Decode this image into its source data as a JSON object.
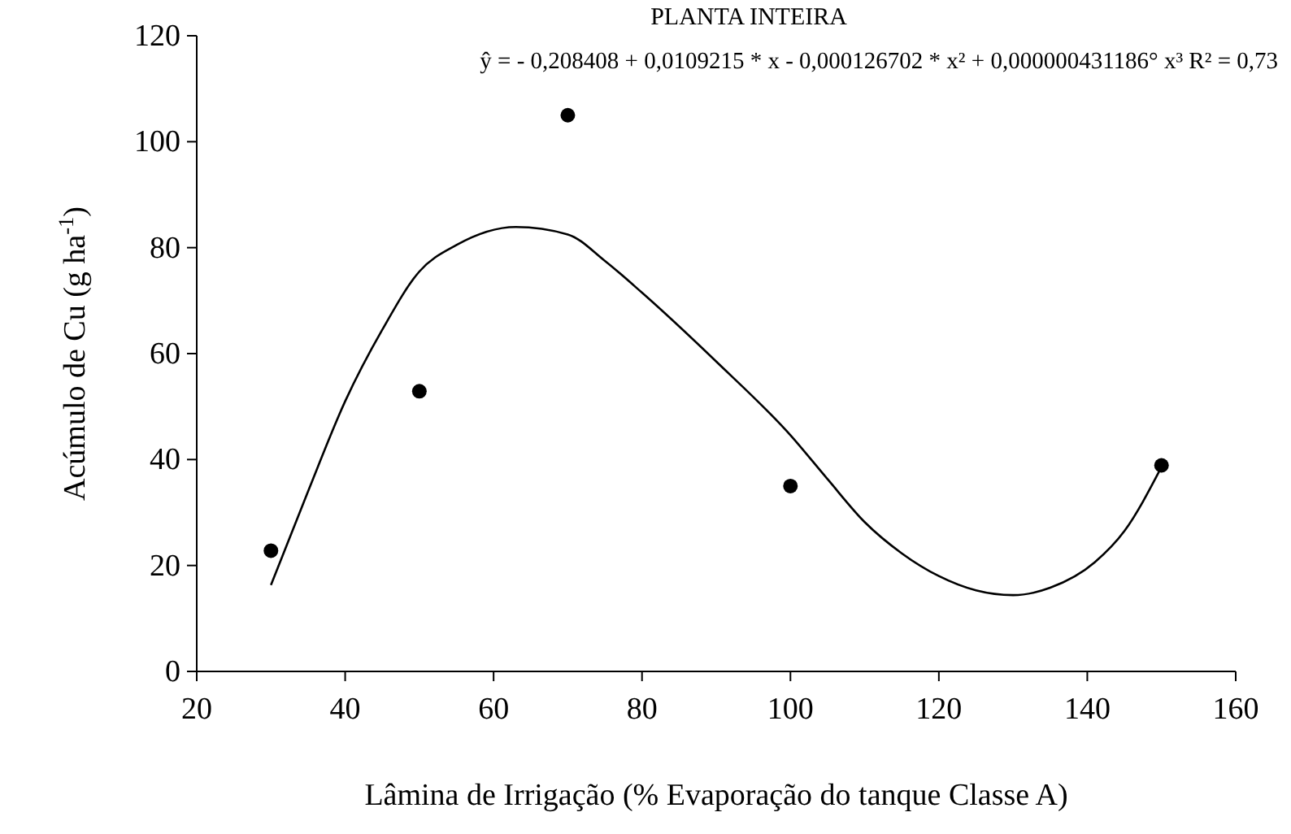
{
  "chart_data": {
    "type": "scatter",
    "title": "PLANTA INTEIRA",
    "xlabel": "Lâmina de Irrigação (% Evaporação do tanque Classe A)",
    "ylabel": "Acúmulo de Cu (g ha$^{-1}$)",
    "annotations": [
      "ŷ = - 0,208408 + 0,0109215 * x - 0,000126702 * x² + 0,000000431186° x³   R² = 0,73"
    ],
    "xlim": [
      20,
      160
    ],
    "xticks": [
      20,
      40,
      60,
      80,
      100,
      120,
      140,
      160
    ],
    "ylim": [
      0,
      120
    ],
    "yticks": [
      0,
      20,
      40,
      60,
      80,
      100,
      120
    ],
    "grid": false,
    "series": [
      {
        "color": "#000000",
        "marker": "circle",
        "x": [
          30,
          50,
          70,
          100,
          150
        ],
        "values": [
          22.8,
          52.9,
          105,
          35,
          38.9
        ]
      },
      {
        "type": "line",
        "color": "#000000",
        "marker": "none",
        "line_style": "solid",
        "x": [
          30,
          35,
          40,
          45,
          50,
          55,
          63,
          70,
          75,
          80,
          90,
          100,
          105,
          110,
          115,
          120,
          125,
          130,
          135,
          141,
          145,
          150
        ],
        "values": [
          16.3,
          34,
          51,
          64.5,
          75.5,
          80.5,
          83.9,
          82.5,
          77.5,
          71.5,
          58.5,
          44.6,
          36.3,
          28.2,
          22.3,
          18,
          15.3,
          14.4,
          15.8,
          20.6,
          26.5,
          38.6
        ]
      }
    ]
  }
}
